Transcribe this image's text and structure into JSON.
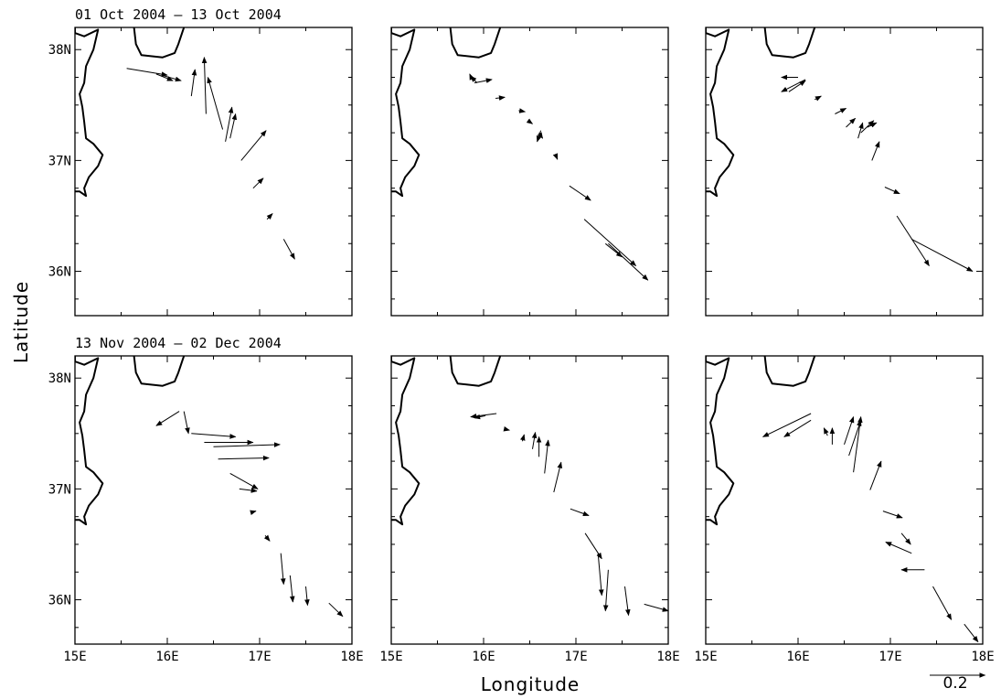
{
  "chart_data": {
    "type": "quiver",
    "xlabel": "Longitude",
    "ylabel": "Latitude",
    "xlim": [
      15,
      18
    ],
    "ylim": [
      35.6,
      38.2
    ],
    "x_tick_labels": [
      "15E",
      "16E",
      "17E",
      "18E"
    ],
    "y_tick_labels": [
      "36N",
      "37N",
      "38N"
    ],
    "x_ticks": [
      15,
      16,
      17,
      18
    ],
    "y_ticks": [
      36,
      37,
      38
    ],
    "scale_label": "0.2",
    "scale_value": 0.2,
    "scale_deg": 0.6,
    "coast": [
      [
        15.0,
        38.2
      ],
      [
        15.0,
        38.15
      ],
      [
        15.1,
        38.12
      ],
      [
        15.25,
        38.18
      ],
      [
        15.2,
        38.0
      ],
      [
        15.12,
        37.85
      ],
      [
        15.1,
        37.7
      ],
      [
        15.05,
        37.6
      ],
      [
        15.08,
        37.48
      ],
      [
        15.1,
        37.35
      ],
      [
        15.12,
        37.2
      ],
      [
        15.2,
        37.15
      ],
      [
        15.3,
        37.05
      ],
      [
        15.25,
        36.95
      ],
      [
        15.15,
        36.85
      ],
      [
        15.1,
        36.75
      ],
      [
        15.12,
        36.68
      ],
      [
        15.05,
        36.72
      ],
      [
        15.0,
        36.72
      ]
    ],
    "calabria": [
      [
        15.64,
        38.2
      ],
      [
        15.66,
        38.05
      ],
      [
        15.72,
        37.95
      ],
      [
        15.95,
        37.93
      ],
      [
        16.08,
        37.97
      ],
      [
        16.12,
        38.05
      ],
      [
        16.18,
        38.2
      ]
    ],
    "panels": [
      {
        "title": "01 Oct 2004 – 13 Oct 2004",
        "vectors": [
          [
            15.56,
            37.83,
            16.0,
            37.77
          ],
          [
            15.88,
            37.78,
            16.06,
            37.72
          ],
          [
            15.94,
            37.77,
            16.15,
            37.72
          ],
          [
            16.26,
            37.58,
            16.3,
            37.82
          ],
          [
            16.42,
            37.42,
            16.4,
            37.93
          ],
          [
            16.6,
            37.28,
            16.44,
            37.75
          ],
          [
            16.63,
            37.17,
            16.7,
            37.48
          ],
          [
            16.68,
            37.2,
            16.74,
            37.42
          ],
          [
            16.8,
            37.0,
            17.07,
            37.27
          ],
          [
            16.93,
            36.75,
            17.04,
            36.84
          ],
          [
            17.08,
            36.47,
            17.14,
            36.52
          ],
          [
            17.26,
            36.29,
            17.38,
            36.11
          ]
        ]
      },
      {
        "title": "",
        "vectors": [
          [
            15.87,
            37.74,
            15.85,
            37.78
          ],
          [
            15.9,
            37.7,
            16.09,
            37.73
          ],
          [
            15.93,
            37.7,
            15.86,
            37.76
          ],
          [
            16.13,
            37.56,
            16.23,
            37.57
          ],
          [
            16.38,
            37.45,
            16.45,
            37.44
          ],
          [
            16.48,
            37.36,
            16.53,
            37.33
          ],
          [
            16.6,
            37.25,
            16.64,
            37.2
          ],
          [
            16.62,
            37.27,
            16.58,
            37.17
          ],
          [
            16.78,
            37.05,
            16.8,
            37.01
          ],
          [
            16.93,
            36.77,
            17.16,
            36.64
          ],
          [
            17.09,
            36.47,
            17.65,
            36.05
          ],
          [
            17.32,
            36.25,
            17.5,
            36.13
          ],
          [
            17.35,
            36.25,
            17.78,
            35.92
          ]
        ]
      },
      {
        "title": "",
        "vectors": [
          [
            16.0,
            37.75,
            15.82,
            37.75
          ],
          [
            15.9,
            37.62,
            16.08,
            37.72
          ],
          [
            16.08,
            37.73,
            15.82,
            37.62
          ],
          [
            16.18,
            37.55,
            16.25,
            37.58
          ],
          [
            16.4,
            37.42,
            16.52,
            37.47
          ],
          [
            16.52,
            37.3,
            16.62,
            37.38
          ],
          [
            16.65,
            37.2,
            16.7,
            37.34
          ],
          [
            16.68,
            37.25,
            16.82,
            37.36
          ],
          [
            16.75,
            37.3,
            16.85,
            37.34
          ],
          [
            16.8,
            37.0,
            16.88,
            37.17
          ],
          [
            16.94,
            36.76,
            17.1,
            36.7
          ],
          [
            17.07,
            36.5,
            17.42,
            36.05
          ],
          [
            17.23,
            36.29,
            17.89,
            36.0
          ]
        ]
      },
      {
        "title": "13 Nov 2004 – 02 Dec 2004",
        "vectors": [
          [
            16.13,
            37.7,
            15.88,
            37.57
          ],
          [
            16.18,
            37.7,
            16.23,
            37.5
          ],
          [
            16.26,
            37.5,
            16.74,
            37.47
          ],
          [
            16.4,
            37.42,
            16.93,
            37.42
          ],
          [
            16.5,
            37.38,
            17.22,
            37.4
          ],
          [
            16.55,
            37.27,
            17.1,
            37.28
          ],
          [
            16.68,
            37.14,
            16.98,
            37.0
          ],
          [
            16.78,
            37.0,
            16.97,
            36.98
          ],
          [
            16.92,
            36.79,
            16.96,
            36.8
          ],
          [
            17.06,
            36.58,
            17.11,
            36.53
          ],
          [
            17.23,
            36.42,
            17.26,
            36.14
          ],
          [
            17.33,
            36.22,
            17.36,
            35.98
          ],
          [
            17.5,
            36.12,
            17.52,
            35.95
          ],
          [
            17.75,
            35.97,
            17.9,
            35.85
          ]
        ]
      },
      {
        "title": "",
        "vectors": [
          [
            16.14,
            37.68,
            15.86,
            37.65
          ],
          [
            16.02,
            37.66,
            15.9,
            37.64
          ],
          [
            16.23,
            37.54,
            16.28,
            37.53
          ],
          [
            16.42,
            37.43,
            16.44,
            37.49
          ],
          [
            16.53,
            37.36,
            16.56,
            37.51
          ],
          [
            16.6,
            37.29,
            16.6,
            37.47
          ],
          [
            16.66,
            37.14,
            16.7,
            37.44
          ],
          [
            16.76,
            36.97,
            16.84,
            37.24
          ],
          [
            16.94,
            36.82,
            17.14,
            36.76
          ],
          [
            17.1,
            36.6,
            17.28,
            36.37
          ],
          [
            17.24,
            36.42,
            17.28,
            36.04
          ],
          [
            17.35,
            36.27,
            17.32,
            35.9
          ],
          [
            17.53,
            36.12,
            17.57,
            35.86
          ],
          [
            17.74,
            35.96,
            18.0,
            35.9
          ]
        ]
      },
      {
        "title": "",
        "vectors": [
          [
            16.14,
            37.68,
            15.62,
            37.47
          ],
          [
            16.14,
            37.62,
            15.85,
            37.47
          ],
          [
            16.32,
            37.48,
            16.28,
            37.55
          ],
          [
            16.37,
            37.4,
            16.37,
            37.55
          ],
          [
            16.5,
            37.4,
            16.6,
            37.65
          ],
          [
            16.55,
            37.3,
            16.68,
            37.62
          ],
          [
            16.6,
            37.15,
            16.68,
            37.65
          ],
          [
            16.78,
            36.99,
            16.9,
            37.25
          ],
          [
            16.92,
            36.8,
            17.13,
            36.74
          ],
          [
            17.12,
            36.6,
            17.22,
            36.5
          ],
          [
            17.23,
            36.42,
            16.95,
            36.52
          ],
          [
            17.37,
            36.27,
            17.12,
            36.27
          ],
          [
            17.46,
            36.12,
            17.66,
            35.82
          ],
          [
            17.8,
            35.78,
            17.95,
            35.62
          ]
        ]
      }
    ]
  }
}
